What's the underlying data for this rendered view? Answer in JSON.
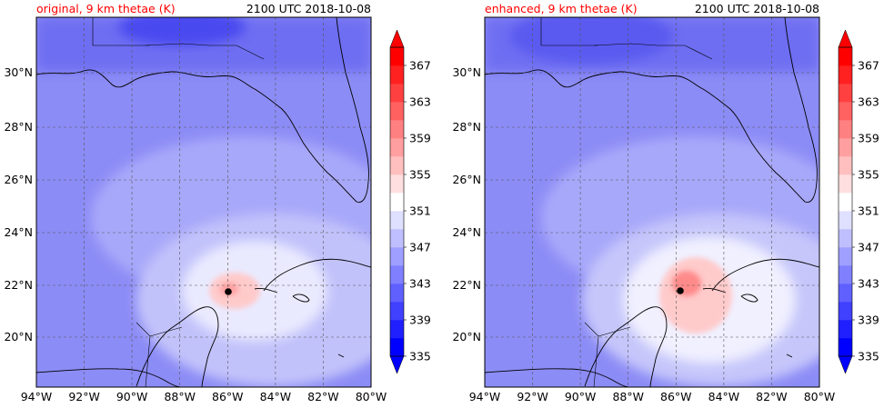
{
  "panels": [
    {
      "id": "left",
      "title": "original, 9 km thetae (K)",
      "time": "2100 UTC 2018-10-08",
      "storm_marker": {
        "lon": -86.0,
        "lat": 21.8
      }
    },
    {
      "id": "right",
      "title": "enhanced, 9 km thetae (K)",
      "time": "2100 UTC 2018-10-08",
      "storm_marker": {
        "lon": -85.9,
        "lat": 21.8
      }
    }
  ],
  "map": {
    "lon_range": [
      -94,
      -80
    ],
    "lat_range": [
      18.2,
      32.0
    ],
    "lon_ticks": [
      {
        "value": -94,
        "label": "94°W"
      },
      {
        "value": -92,
        "label": "92°W"
      },
      {
        "value": -90,
        "label": "90°W"
      },
      {
        "value": -88,
        "label": "88°W"
      },
      {
        "value": -86,
        "label": "86°W"
      },
      {
        "value": -84,
        "label": "84°W"
      },
      {
        "value": -82,
        "label": "82°W"
      },
      {
        "value": -80,
        "label": "80°W"
      }
    ],
    "lat_ticks": [
      {
        "value": 20,
        "label": "20°N"
      },
      {
        "value": 22,
        "label": "22°N"
      },
      {
        "value": 24,
        "label": "24°N"
      },
      {
        "value": 26,
        "label": "26°N"
      },
      {
        "value": 28,
        "label": "28°N"
      },
      {
        "value": 30,
        "label": "30°N"
      }
    ],
    "gridlines": true
  },
  "colorbar": {
    "levels": [
      335,
      337,
      339,
      341,
      343,
      345,
      347,
      349,
      351,
      353,
      355,
      357,
      359,
      361,
      363,
      365,
      367,
      369
    ],
    "tick_labels": [
      "335",
      "339",
      "343",
      "347",
      "351",
      "355",
      "359",
      "363",
      "367"
    ],
    "extend": "both",
    "colors": [
      "#0000ff",
      "#2020ff",
      "#4040ff",
      "#6060ff",
      "#8080ff",
      "#9f9fff",
      "#bfbfff",
      "#dfdfff",
      "#ffffff",
      "#ffdfdf",
      "#ffbfbf",
      "#ff9f9f",
      "#ff8080",
      "#ff6060",
      "#ff4040",
      "#ff2020",
      "#ff0000"
    ],
    "under_color": "#0000ff",
    "over_color": "#ff0000"
  },
  "colors": {
    "title_color": "#ff0000",
    "text_color": "#000000"
  }
}
